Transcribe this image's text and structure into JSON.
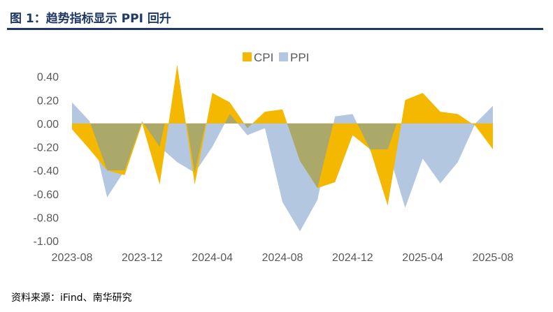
{
  "figure": {
    "title": "图 1：趋势指标显示 PPI 回升",
    "source": "资料来源：iFind、南华研究"
  },
  "colors": {
    "title": "#1f3864",
    "cpi": "#f4b800",
    "ppi": "#b4c7e0",
    "overlap": "#aaa96a",
    "axis_text": "#595959"
  },
  "chart_data": {
    "type": "area",
    "x": [
      "2023-08",
      "2023-09",
      "2023-10",
      "2023-11",
      "2023-12",
      "2024-01",
      "2024-02",
      "2024-03",
      "2024-04",
      "2024-05",
      "2024-06",
      "2024-07",
      "2024-08",
      "2024-09",
      "2024-10",
      "2024-11",
      "2024-12",
      "2025-01",
      "2025-02",
      "2025-03",
      "2025-04",
      "2025-05",
      "2025-06",
      "2025-07",
      "2025-08"
    ],
    "x_tick_labels": [
      "2023-08",
      "2023-12",
      "2024-04",
      "2024-08",
      "2024-12",
      "2025-04",
      "2025-08"
    ],
    "series": [
      {
        "name": "CPI",
        "values": [
          -0.05,
          -0.22,
          -0.4,
          -0.44,
          0.0,
          -0.52,
          0.5,
          -0.52,
          0.26,
          0.18,
          -0.04,
          0.1,
          0.12,
          -0.32,
          -0.55,
          -0.5,
          -0.1,
          -0.22,
          -0.7,
          0.2,
          0.26,
          0.1,
          0.08,
          -0.02,
          -0.22
        ]
      },
      {
        "name": "PPI",
        "values": [
          0.18,
          0.02,
          -0.63,
          -0.4,
          0.02,
          -0.2,
          -0.33,
          -0.42,
          -0.2,
          0.08,
          -0.1,
          -0.04,
          -0.67,
          -0.92,
          -0.65,
          0.06,
          0.08,
          -0.23,
          -0.22,
          -0.72,
          -0.3,
          -0.51,
          -0.33,
          0.0,
          0.15
        ]
      }
    ],
    "ylim": [
      -1.0,
      0.6
    ],
    "yticks": [
      -1.0,
      -0.8,
      -0.6,
      -0.4,
      -0.2,
      0.0,
      0.2,
      0.4
    ],
    "ytick_labels": [
      "-1.00",
      "-0.80",
      "-0.60",
      "-0.40",
      "-0.20",
      "0.00",
      "0.20",
      "0.40"
    ],
    "legend": {
      "position": "top-center",
      "items": [
        "CPI",
        "PPI"
      ]
    },
    "grid": false,
    "title": "",
    "xlabel": "",
    "ylabel": ""
  }
}
